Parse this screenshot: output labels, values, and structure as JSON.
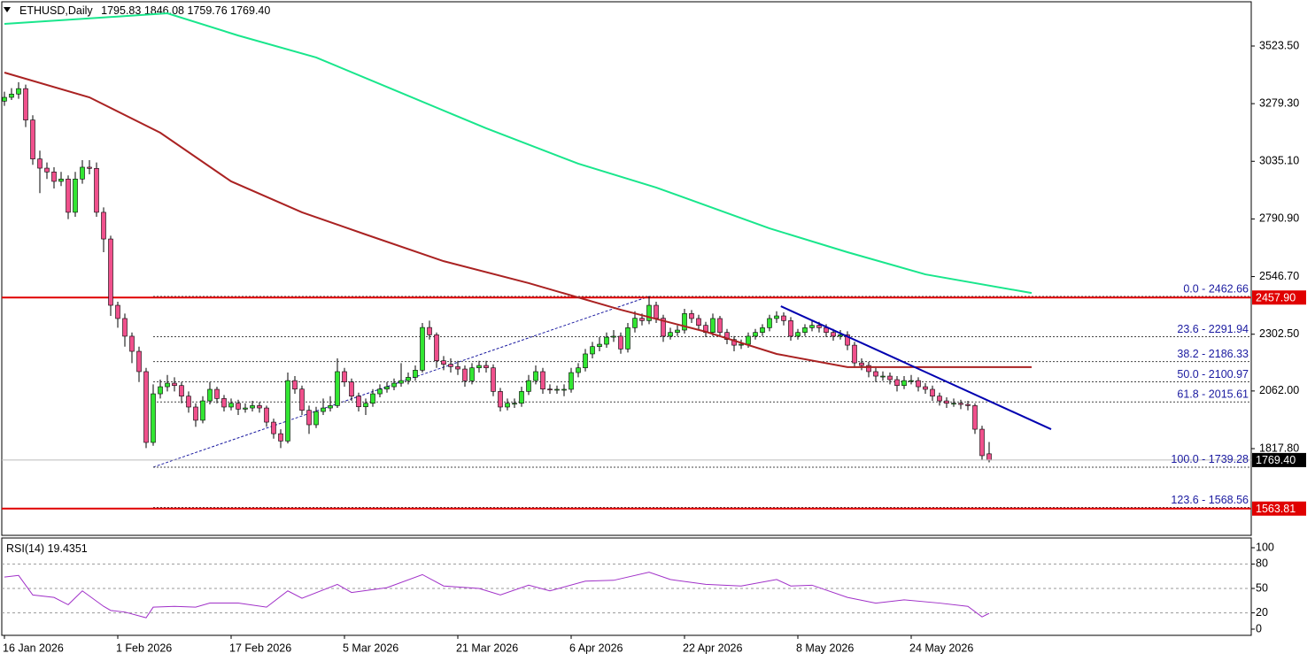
{
  "chart_data": {
    "type": "candlestick",
    "title": "ETHUSD,Daily",
    "ohlc_labels": [
      "1795.83",
      "1846.08",
      "1759.76",
      "1769.40"
    ],
    "up_color": "#32e632",
    "down_color": "#f0508c",
    "xlim": [
      -0.375,
      176
    ],
    "xticks": [
      {
        "value": 0,
        "label": "16 Jan 2026"
      },
      {
        "value": 16,
        "label": "1 Feb 2026"
      },
      {
        "value": 32,
        "label": "17 Feb 2026"
      },
      {
        "value": 48,
        "label": "5 Mar 2026"
      },
      {
        "value": 64,
        "label": "21 Mar 2026"
      },
      {
        "value": 80,
        "label": "6 Apr 2026"
      },
      {
        "value": 96,
        "label": "22 Apr 2026"
      },
      {
        "value": 112,
        "label": "8 May 2026"
      },
      {
        "value": 128,
        "label": "24 May 2026"
      }
    ],
    "ylim": [
      1450.4,
      3710.9
    ],
    "yticks": [
      {
        "value": 3523.5,
        "label": "3523.50"
      },
      {
        "value": 3279.3,
        "label": "3279.30"
      },
      {
        "value": 3035.1,
        "label": "3035.10"
      },
      {
        "value": 2790.9,
        "label": "2790.90"
      },
      {
        "value": 2546.7,
        "label": "2546.70"
      },
      {
        "value": 2302.5,
        "label": "2302.50"
      },
      {
        "value": 2062,
        "label": "2062.00"
      },
      {
        "value": 1817.8,
        "label": "1817.80"
      }
    ],
    "candles": [
      [
        3290,
        3330,
        3270,
        3306
      ],
      [
        3306,
        3345,
        3295,
        3320
      ],
      [
        3320,
        3370,
        3300,
        3343
      ],
      [
        3343,
        3360,
        3180,
        3210
      ],
      [
        3210,
        3230,
        3020,
        3045
      ],
      [
        3045,
        3080,
        2900,
        3006
      ],
      [
        3006,
        3030,
        2960,
        2990
      ],
      [
        2990,
        3010,
        2920,
        2950
      ],
      [
        2950,
        2990,
        2930,
        2960
      ],
      [
        2960,
        2975,
        2790,
        2819
      ],
      [
        2819,
        2990,
        2800,
        2960
      ],
      [
        2960,
        3040,
        2940,
        3010
      ],
      [
        3010,
        3040,
        2980,
        3005
      ],
      [
        3005,
        3030,
        2800,
        2819
      ],
      [
        2819,
        2840,
        2650,
        2706
      ],
      [
        2706,
        2720,
        2380,
        2425
      ],
      [
        2425,
        2440,
        2330,
        2369
      ],
      [
        2369,
        2390,
        2250,
        2294
      ],
      [
        2294,
        2310,
        2180,
        2230
      ],
      [
        2230,
        2250,
        2100,
        2144
      ],
      [
        2144,
        2160,
        1820,
        1844
      ],
      [
        1844,
        2090,
        1830,
        2050
      ],
      [
        2050,
        2110,
        2030,
        2080
      ],
      [
        2080,
        2130,
        2060,
        2095
      ],
      [
        2095,
        2120,
        2060,
        2085
      ],
      [
        2085,
        2100,
        2010,
        2040
      ],
      [
        2040,
        2060,
        1970,
        1994
      ],
      [
        1994,
        2010,
        1910,
        1938
      ],
      [
        1938,
        2040,
        1925,
        2020
      ],
      [
        2020,
        2100,
        2005,
        2069
      ],
      [
        2069,
        2080,
        2010,
        2030
      ],
      [
        2030,
        2045,
        1975,
        1994
      ],
      [
        1994,
        2030,
        1980,
        2010
      ],
      [
        2010,
        2025,
        1960,
        1985
      ],
      [
        1985,
        2010,
        1970,
        1990
      ],
      [
        1990,
        2020,
        1975,
        2000
      ],
      [
        2000,
        2015,
        1970,
        1990
      ],
      [
        1990,
        2000,
        1910,
        1930
      ],
      [
        1930,
        1945,
        1860,
        1881
      ],
      [
        1881,
        1900,
        1820,
        1850
      ],
      [
        1850,
        2140,
        1840,
        2106
      ],
      [
        2106,
        2125,
        2050,
        2070
      ],
      [
        2070,
        2085,
        1960,
        1980
      ],
      [
        1980,
        2000,
        1880,
        1919
      ],
      [
        1919,
        1995,
        1905,
        1975
      ],
      [
        1975,
        2030,
        1960,
        1990
      ],
      [
        1990,
        2040,
        1975,
        2000
      ],
      [
        2000,
        2200,
        1990,
        2144
      ],
      [
        2144,
        2160,
        2080,
        2100
      ],
      [
        2100,
        2115,
        2020,
        2040
      ],
      [
        2040,
        2055,
        1975,
        1995
      ],
      [
        1995,
        2030,
        1960,
        2010
      ],
      [
        2010,
        2070,
        1995,
        2050
      ],
      [
        2050,
        2090,
        2035,
        2070
      ],
      [
        2070,
        2100,
        2055,
        2080
      ],
      [
        2080,
        2115,
        2065,
        2095
      ],
      [
        2095,
        2180,
        2080,
        2106
      ],
      [
        2106,
        2140,
        2090,
        2120
      ],
      [
        2120,
        2170,
        2105,
        2150
      ],
      [
        2150,
        2350,
        2140,
        2331
      ],
      [
        2331,
        2360,
        2280,
        2300
      ],
      [
        2300,
        2310,
        2160,
        2190
      ],
      [
        2190,
        2210,
        2150,
        2175
      ],
      [
        2175,
        2200,
        2140,
        2165
      ],
      [
        2165,
        2190,
        2130,
        2155
      ],
      [
        2155,
        2170,
        2080,
        2105
      ],
      [
        2105,
        2180,
        2090,
        2160
      ],
      [
        2160,
        2190,
        2140,
        2170
      ],
      [
        2170,
        2190,
        2140,
        2160
      ],
      [
        2160,
        2175,
        2040,
        2060
      ],
      [
        2060,
        2075,
        1975,
        1994
      ],
      [
        1994,
        2030,
        1980,
        2010
      ],
      [
        2010,
        2030,
        1990,
        2010
      ],
      [
        2010,
        2080,
        1995,
        2060
      ],
      [
        2060,
        2130,
        2045,
        2106
      ],
      [
        2106,
        2170,
        2090,
        2144
      ],
      [
        2144,
        2160,
        2050,
        2070
      ],
      [
        2070,
        2090,
        2050,
        2069
      ],
      [
        2069,
        2085,
        2050,
        2069
      ],
      [
        2069,
        2090,
        2040,
        2069
      ],
      [
        2069,
        2160,
        2055,
        2140
      ],
      [
        2140,
        2180,
        2120,
        2160
      ],
      [
        2160,
        2240,
        2145,
        2219
      ],
      [
        2219,
        2270,
        2200,
        2250
      ],
      [
        2250,
        2290,
        2230,
        2260
      ],
      [
        2260,
        2310,
        2245,
        2290
      ],
      [
        2290,
        2320,
        2270,
        2294
      ],
      [
        2294,
        2310,
        2220,
        2240
      ],
      [
        2240,
        2350,
        2225,
        2330
      ],
      [
        2330,
        2400,
        2310,
        2370
      ],
      [
        2370,
        2390,
        2340,
        2360
      ],
      [
        2360,
        2462,
        2345,
        2425
      ],
      [
        2425,
        2440,
        2350,
        2370
      ],
      [
        2370,
        2385,
        2270,
        2294
      ],
      [
        2294,
        2330,
        2280,
        2310
      ],
      [
        2310,
        2340,
        2295,
        2320
      ],
      [
        2320,
        2410,
        2305,
        2390
      ],
      [
        2390,
        2405,
        2350,
        2369
      ],
      [
        2369,
        2385,
        2320,
        2340
      ],
      [
        2340,
        2355,
        2290,
        2310
      ],
      [
        2310,
        2390,
        2295,
        2369
      ],
      [
        2369,
        2380,
        2290,
        2310
      ],
      [
        2310,
        2325,
        2260,
        2280
      ],
      [
        2280,
        2295,
        2230,
        2256
      ],
      [
        2256,
        2280,
        2240,
        2260
      ],
      [
        2260,
        2310,
        2245,
        2294
      ],
      [
        2294,
        2325,
        2280,
        2310
      ],
      [
        2310,
        2345,
        2295,
        2330
      ],
      [
        2330,
        2385,
        2315,
        2369
      ],
      [
        2369,
        2400,
        2350,
        2380
      ],
      [
        2380,
        2395,
        2340,
        2360
      ],
      [
        2360,
        2375,
        2275,
        2294
      ],
      [
        2294,
        2325,
        2280,
        2310
      ],
      [
        2310,
        2345,
        2295,
        2330
      ],
      [
        2330,
        2360,
        2315,
        2340
      ],
      [
        2340,
        2355,
        2310,
        2330
      ],
      [
        2330,
        2345,
        2290,
        2310
      ],
      [
        2310,
        2325,
        2275,
        2294
      ],
      [
        2294,
        2320,
        2280,
        2300
      ],
      [
        2300,
        2315,
        2235,
        2256
      ],
      [
        2256,
        2270,
        2160,
        2181
      ],
      [
        2181,
        2200,
        2150,
        2170
      ],
      [
        2170,
        2185,
        2120,
        2144
      ],
      [
        2144,
        2160,
        2100,
        2125
      ],
      [
        2125,
        2145,
        2105,
        2125
      ],
      [
        2125,
        2140,
        2090,
        2110
      ],
      [
        2110,
        2125,
        2060,
        2085
      ],
      [
        2085,
        2125,
        2070,
        2106
      ],
      [
        2106,
        2130,
        2090,
        2106
      ],
      [
        2106,
        2120,
        2060,
        2080
      ],
      [
        2080,
        2095,
        2050,
        2069
      ],
      [
        2069,
        2085,
        2020,
        2040
      ],
      [
        2040,
        2055,
        2000,
        2020
      ],
      [
        2020,
        2035,
        1990,
        2010
      ],
      [
        2010,
        2030,
        1995,
        2010
      ],
      [
        2010,
        2025,
        1985,
        2005
      ],
      [
        2005,
        2020,
        1980,
        2000
      ],
      [
        2000,
        2010,
        1880,
        1900
      ],
      [
        1900,
        1915,
        1770,
        1788
      ],
      [
        1795.83,
        1846.08,
        1759.76,
        1769.4
      ]
    ],
    "overlays": [
      {
        "color": "#19e68c",
        "x": [
          0,
          23,
          33,
          44,
          56,
          68,
          81,
          92,
          108,
          119,
          130,
          145
        ],
        "values": [
          3617,
          3662,
          3568,
          3475,
          3325,
          3175,
          3025,
          2924,
          2751,
          2650,
          2556,
          2477
        ]
      },
      {
        "color": "#aa2222",
        "x": [
          0,
          12,
          22,
          32,
          42,
          51,
          62,
          74,
          87,
          99,
          109,
          119,
          130,
          145
        ],
        "values": [
          3411,
          3306,
          3156,
          2950,
          2819,
          2725,
          2612,
          2519,
          2406,
          2313,
          2219,
          2163,
          2163,
          2163
        ]
      },
      {
        "color": "#0000b0",
        "x": [
          109.6,
          147.75
        ],
        "values": [
          2421,
          1900
        ]
      }
    ],
    "h_lines": [
      {
        "value": 2457.9,
        "label": "2457.90"
      },
      {
        "value": 1563.81,
        "label": "1563.81"
      }
    ],
    "h_line_color": "#e00000",
    "fib_x": [
      21,
      91
    ],
    "fib_levels": [
      {
        "value": 2462.66,
        "label": "0.0 - 2462.66"
      },
      {
        "value": 2291.94,
        "label": "23.6 - 2291.94"
      },
      {
        "value": 2186.33,
        "label": "38.2 - 2186.33"
      },
      {
        "value": 2100.97,
        "label": "50.0 - 2100.97"
      },
      {
        "value": 2015.61,
        "label": "61.8 - 2015.61"
      },
      {
        "value": 1739.28,
        "label": "100.0 - 1739.28"
      },
      {
        "value": 1568.56,
        "label": "123.6 - 1568.56"
      }
    ],
    "fib_color": "#1a1aa0",
    "rsi": {
      "name": "RSI(14)",
      "color": "#a030c8",
      "ylim": [
        0,
        100
      ],
      "yticks": [
        0,
        20,
        50,
        80,
        100
      ],
      "x": [
        0,
        2,
        4,
        7,
        9,
        11,
        14,
        15,
        17,
        20,
        21,
        24,
        27,
        29,
        33,
        37,
        40,
        42,
        47,
        49,
        54,
        59,
        62,
        67,
        70,
        74,
        77,
        82,
        86,
        91,
        94,
        99,
        104,
        109,
        111,
        114,
        119,
        123,
        127,
        132,
        136,
        138,
        139
      ],
      "values": [
        64,
        66,
        42,
        39,
        30,
        47,
        28,
        23,
        21,
        14,
        27,
        28,
        27,
        32,
        32,
        27,
        47,
        38,
        55,
        45,
        51,
        67,
        53,
        50,
        42,
        54,
        47,
        59,
        60,
        70,
        61,
        55,
        53,
        61,
        53,
        54,
        39,
        32,
        36,
        32,
        28,
        15,
        19.4351
      ]
    }
  }
}
